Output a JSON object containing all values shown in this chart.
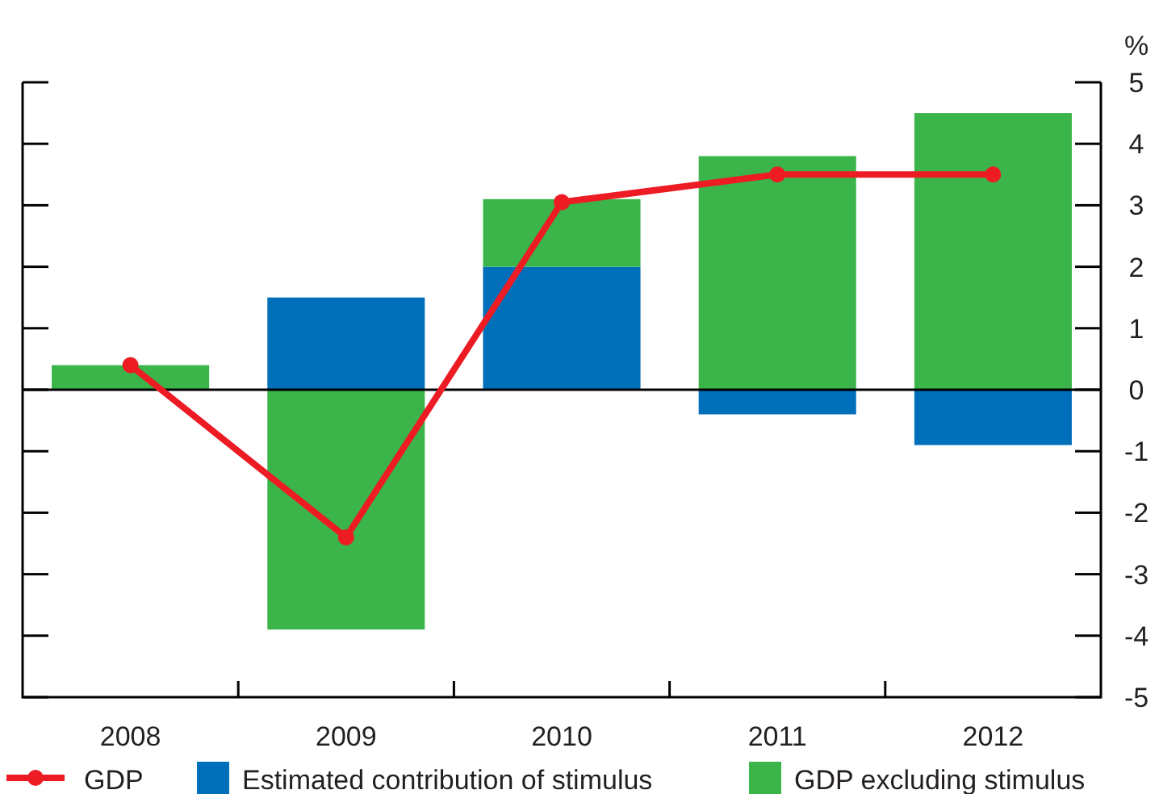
{
  "chart_data": {
    "type": "bar",
    "stacked": true,
    "ylabel": "%",
    "categories": [
      "2008",
      "2009",
      "2010",
      "2011",
      "2012"
    ],
    "ylim": [
      -5,
      5
    ],
    "yticks": [
      -5,
      -4,
      -3,
      -2,
      -1,
      0,
      1,
      2,
      3,
      4,
      5
    ],
    "legend": "bottom",
    "series": [
      {
        "name": "GDP",
        "type": "line",
        "color": "#ed1c24",
        "marker": "circle",
        "values": [
          0.4,
          -2.4,
          3.05,
          3.5,
          3.5
        ]
      },
      {
        "name": "Estimated contribution of stimulus",
        "color": "#006fba",
        "values": [
          0,
          1.5,
          2.0,
          -0.4,
          -0.9
        ]
      },
      {
        "name": "GDP excluding stimulus",
        "color": "#3bb54a",
        "values": [
          0.4,
          -3.9,
          1.1,
          3.8,
          4.5
        ]
      }
    ]
  }
}
